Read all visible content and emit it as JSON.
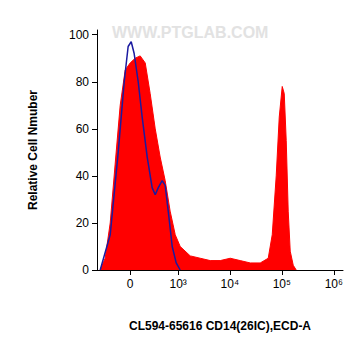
{
  "chart_data": {
    "type": "line",
    "xlabel": "CL594-65616 CD14(26IC),ECD-A",
    "ylabel": "Relative Cell Nmuber",
    "annotations": [
      {
        "text": "WWW.PTGLAB.COM"
      }
    ],
    "log": "x",
    "grid": false,
    "xlim": [
      -500,
      1500000
    ],
    "xticks": [
      0,
      {
        "value": 1000,
        "label": "10³"
      },
      {
        "value": 10000,
        "label": "10⁴"
      },
      {
        "value": 100000,
        "label": "10⁵"
      },
      {
        "value": 1000000,
        "label": "10⁶"
      }
    ],
    "ylim": [
      0,
      102
    ],
    "yticks": [
      0,
      20,
      40,
      60,
      80,
      100
    ],
    "series": [
      {
        "type": "area",
        "color": "#ff0000",
        "x": [
          -426,
          -328,
          -244,
          -174,
          -111,
          -54,
          0,
          54,
          111,
          174,
          244,
          328,
          426,
          546,
          692,
          876,
          1098,
          1725,
          2692,
          4194,
          6537,
          10182,
          15844,
          24689,
          38443,
          54772,
          65400,
          78000,
          89200,
          101800,
          111300,
          121500,
          132700,
          145000,
          165700,
          189100
        ],
        "values": [
          0,
          5,
          20,
          45,
          70,
          85,
          88,
          90,
          91,
          88,
          75,
          60,
          48,
          38,
          25,
          15,
          10,
          6,
          5,
          4,
          4,
          5,
          4,
          3,
          3,
          5,
          15,
          40,
          65,
          78,
          75,
          55,
          25,
          8,
          2,
          0
        ]
      },
      {
        "type": "line",
        "color": "#1a1aa0",
        "x": [
          -426,
          -244,
          -135,
          -65,
          -22,
          11,
          43,
          88,
          135,
          201,
          275,
          328,
          387,
          471,
          546,
          632,
          762,
          916,
          1098
        ],
        "values": [
          0,
          15,
          50,
          80,
          95,
          97,
          92,
          80,
          65,
          48,
          35,
          32,
          35,
          38,
          36,
          25,
          10,
          3,
          0
        ]
      }
    ]
  }
}
